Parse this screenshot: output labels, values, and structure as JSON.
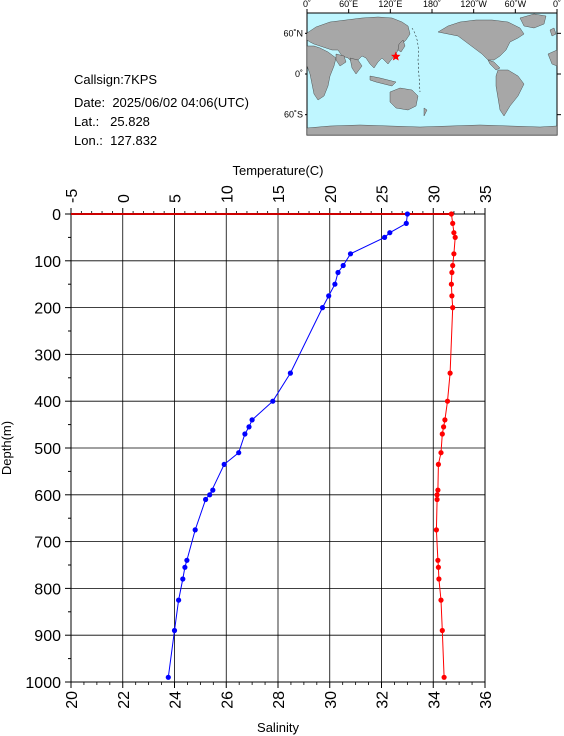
{
  "station": {
    "callsign_label": "Callsign:",
    "callsign": "7KPS",
    "date_label": "Date:",
    "date": "2025/06/02 04:06(UTC)",
    "lat_label": "Lat.:",
    "lat": "25.828",
    "lon_label": "Lon.:",
    "lon": "127.832"
  },
  "map": {
    "top_ticks": [
      "0˚",
      "60˚E",
      "120˚E",
      "180˚",
      "120˚W",
      "60˚W",
      "0˚"
    ],
    "right_ticks": [
      "60˚N",
      "0˚",
      "60˚S"
    ],
    "marker_lon": 127.832,
    "marker_lat": 25.828,
    "ocean_color": "#bff6ff",
    "land_color": "#a7a7a7",
    "marker_color": "#ff0000"
  },
  "chart_data": {
    "type": "line",
    "title": "",
    "ylabel": "Depth(m)",
    "ylim": [
      1000,
      0
    ],
    "yticks": [
      0,
      100,
      200,
      300,
      400,
      500,
      600,
      700,
      800,
      900,
      1000
    ],
    "top_axis": {
      "label": "Temperature(C)",
      "lim": [
        -5,
        35
      ],
      "ticks": [
        -5,
        0,
        5,
        10,
        15,
        20,
        25,
        30,
        35
      ]
    },
    "bottom_axis": {
      "label": "Salinity",
      "lim": [
        20,
        36
      ],
      "ticks": [
        20,
        22,
        24,
        26,
        28,
        30,
        32,
        34,
        36
      ]
    },
    "grid": true,
    "series": [
      {
        "axis": "top",
        "color": "#0000ff",
        "points": [
          [
            27.5,
            0
          ],
          [
            27.4,
            20
          ],
          [
            25.8,
            40
          ],
          [
            25.3,
            50
          ],
          [
            22.0,
            85
          ],
          [
            21.3,
            110
          ],
          [
            20.8,
            125
          ],
          [
            20.5,
            150
          ],
          [
            19.9,
            175
          ],
          [
            19.3,
            200
          ],
          [
            16.2,
            340
          ],
          [
            14.5,
            400
          ],
          [
            12.5,
            440
          ],
          [
            12.2,
            455
          ],
          [
            11.8,
            470
          ],
          [
            11.2,
            510
          ],
          [
            9.8,
            535
          ],
          [
            8.4,
            600
          ],
          [
            8.7,
            590
          ],
          [
            8.0,
            610
          ],
          [
            7.0,
            675
          ],
          [
            6.2,
            740
          ],
          [
            6.0,
            755
          ],
          [
            5.8,
            780
          ],
          [
            5.4,
            825
          ],
          [
            5.0,
            890
          ],
          [
            4.4,
            990
          ]
        ]
      },
      {
        "axis": "bottom",
        "color": "#ff0000",
        "points": [
          [
            34.7,
            0
          ],
          [
            34.75,
            20
          ],
          [
            34.8,
            40
          ],
          [
            34.85,
            50
          ],
          [
            34.8,
            85
          ],
          [
            34.75,
            110
          ],
          [
            34.72,
            125
          ],
          [
            34.7,
            150
          ],
          [
            34.72,
            175
          ],
          [
            34.75,
            200
          ],
          [
            34.65,
            340
          ],
          [
            34.55,
            400
          ],
          [
            34.45,
            440
          ],
          [
            34.4,
            455
          ],
          [
            34.35,
            470
          ],
          [
            34.3,
            510
          ],
          [
            34.2,
            535
          ],
          [
            34.18,
            590
          ],
          [
            34.15,
            600
          ],
          [
            34.15,
            610
          ],
          [
            34.12,
            675
          ],
          [
            34.18,
            740
          ],
          [
            34.2,
            755
          ],
          [
            34.22,
            780
          ],
          [
            34.3,
            825
          ],
          [
            34.35,
            890
          ],
          [
            34.42,
            990
          ]
        ]
      }
    ]
  }
}
